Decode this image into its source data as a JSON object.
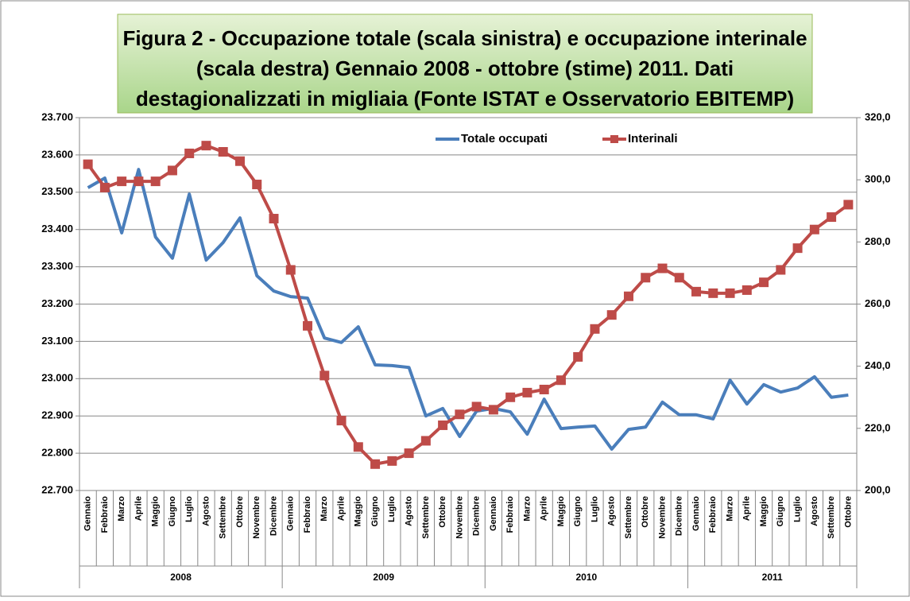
{
  "chart_data": {
    "type": "line",
    "title": [
      "Figura 2 - Occupazione totale (scala sinistra) e occupazione interinale",
      "(scala destra) Gennaio 2008 -  ottobre (stime) 2011. Dati",
      "destagionalizzati in migliaia (Fonte ISTAT e Osservatorio  EBITEMP)"
    ],
    "categories": [
      "Gennaio",
      "Febbraio",
      "Marzo",
      "Aprile",
      "Maggio",
      "Giugno",
      "Luglio",
      "Agosto",
      "Settembre",
      "Ottobre",
      "Novembre",
      "Dicembre",
      "Gennaio",
      "Febbraio",
      "Marzo",
      "Aprile",
      "Maggio",
      "Giugno",
      "Luglio",
      "Agosto",
      "Settembre",
      "Ottobre",
      "Novembre",
      "Dicembre",
      "Gennaio",
      "Febbraio",
      "Marzo",
      "Aprile",
      "Maggio",
      "Giugno",
      "Luglio",
      "Agosto",
      "Settembre",
      "Ottobre",
      "Novembre",
      "Dicembre",
      "Gennaio",
      "Febbraio",
      "Marzo",
      "Aprile",
      "Maggio",
      "Giugno",
      "Luglio",
      "Agosto",
      "Settembre",
      "Ottobre"
    ],
    "year_labels": [
      "2008",
      "2009",
      "2010",
      "2011"
    ],
    "series": [
      {
        "name": "Totale occupati",
        "color": "#4a7ebb",
        "marker": "none",
        "values": [
          23512,
          23538,
          23391,
          23561,
          23380,
          23323,
          23495,
          23318,
          23365,
          23431,
          23276,
          23235,
          23220,
          23216,
          23109,
          23097,
          23139,
          23037,
          23035,
          23030,
          22900,
          22920,
          22845,
          22913,
          22920,
          22911,
          22851,
          22945,
          22866,
          22870,
          22873,
          22811,
          22864,
          22870,
          22937,
          22903,
          22903,
          22892,
          22996,
          22932,
          22984,
          22964,
          22975,
          23005,
          22950,
          22956
        ]
      },
      {
        "name": "Interinali",
        "color": "#be4b48",
        "marker": "square",
        "axis": "y2",
        "values": [
          305,
          297.5,
          299.5,
          299.5,
          299.5,
          303,
          308.5,
          311,
          309,
          306,
          298.5,
          287.5,
          271,
          253,
          237,
          222.5,
          214,
          208.5,
          209.5,
          212,
          216,
          221,
          224.5,
          227,
          226,
          230,
          231.5,
          232.5,
          235.5,
          243,
          252,
          256.5,
          262.5,
          268.5,
          271.5,
          268.5,
          264,
          263.5,
          263.5,
          264.5,
          267,
          271,
          278,
          284,
          288,
          292
        ]
      }
    ],
    "ylim": [
      22700,
      23700
    ],
    "yticks": [
      {
        "value": 22700,
        "label": "22.700"
      },
      {
        "value": 22800,
        "label": "22.800"
      },
      {
        "value": 22900,
        "label": "22.900"
      },
      {
        "value": 23000,
        "label": "23.000"
      },
      {
        "value": 23100,
        "label": "23.100"
      },
      {
        "value": 23200,
        "label": "23.200"
      },
      {
        "value": 23300,
        "label": "23.300"
      },
      {
        "value": 23400,
        "label": "23.400"
      },
      {
        "value": 23500,
        "label": "23.500"
      },
      {
        "value": 23600,
        "label": "23.600"
      },
      {
        "value": 23700,
        "label": "23.700"
      }
    ],
    "y2lim": [
      200,
      320
    ],
    "y2ticks": [
      {
        "value": 200,
        "label": "200,0"
      },
      {
        "value": 220,
        "label": "220,0"
      },
      {
        "value": 240,
        "label": "240,0"
      },
      {
        "value": 260,
        "label": "260,0"
      },
      {
        "value": 280,
        "label": "280,0"
      },
      {
        "value": 300,
        "label": "300,0"
      },
      {
        "value": 320,
        "label": "320,0"
      }
    ],
    "grid": true,
    "legend": "top-right"
  }
}
